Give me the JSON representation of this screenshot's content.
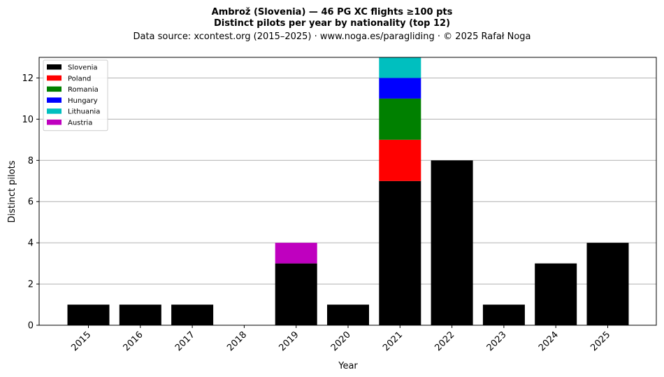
{
  "chart_data": {
    "type": "bar",
    "stacked": true,
    "title": "Ambrož (Slovenia)  —  46 PG XC flights ≥100 pts",
    "subtitle": "Distinct pilots per year by nationality (top 12)",
    "source": "Data source: xcontest.org (2015–2025)  ·  www.noga.es/paragliding  ·  © 2025 Rafał Noga",
    "xlabel": "Year",
    "ylabel": "Distinct pilots",
    "ylim": [
      0,
      13
    ],
    "yticks": [
      0,
      2,
      4,
      6,
      8,
      10,
      12
    ],
    "grid": "horizontal",
    "legend_position": "top-left",
    "categories": [
      "2015",
      "2016",
      "2017",
      "2018",
      "2019",
      "2020",
      "2021",
      "2022",
      "2023",
      "2024",
      "2025"
    ],
    "series": [
      {
        "name": "Slovenia",
        "color": "#000000",
        "values": [
          1,
          1,
          1,
          0,
          3,
          1,
          7,
          8,
          1,
          3,
          4
        ]
      },
      {
        "name": "Poland",
        "color": "#ff0000",
        "values": [
          0,
          0,
          0,
          0,
          0,
          0,
          2,
          0,
          0,
          0,
          0
        ]
      },
      {
        "name": "Romania",
        "color": "#008000",
        "values": [
          0,
          0,
          0,
          0,
          0,
          0,
          2,
          0,
          0,
          0,
          0
        ]
      },
      {
        "name": "Hungary",
        "color": "#0000ff",
        "values": [
          0,
          0,
          0,
          0,
          0,
          0,
          1,
          0,
          0,
          0,
          0
        ]
      },
      {
        "name": "Lithuania",
        "color": "#00bfbf",
        "values": [
          0,
          0,
          0,
          0,
          0,
          0,
          1,
          0,
          0,
          0,
          0
        ]
      },
      {
        "name": "Austria",
        "color": "#bf00bf",
        "values": [
          0,
          0,
          0,
          0,
          1,
          0,
          0,
          0,
          0,
          0,
          0
        ]
      }
    ]
  }
}
